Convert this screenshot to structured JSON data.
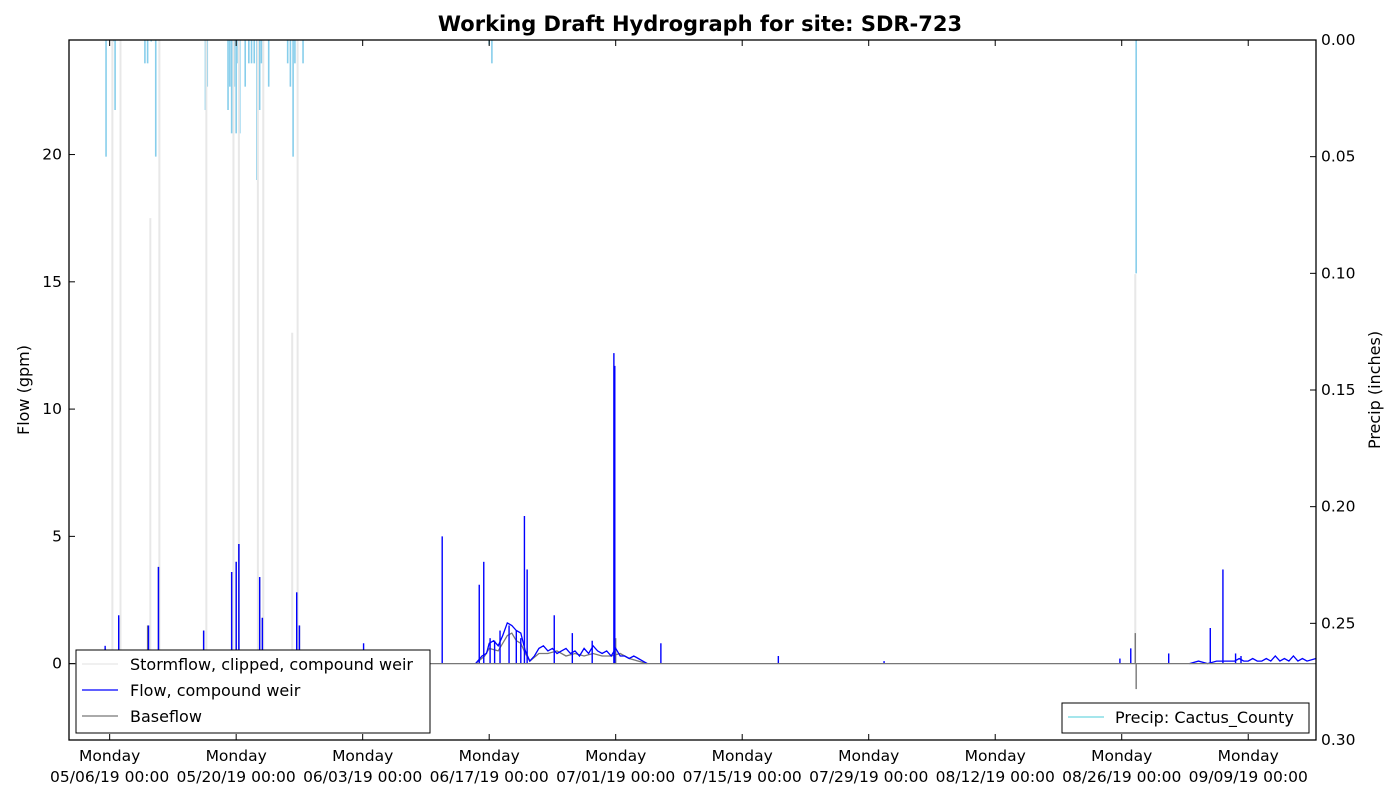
{
  "chart_data": {
    "type": "line",
    "title": "Working Draft Hydrograph for site: SDR-723",
    "xlabel": "",
    "ylabel": "Flow (gpm)",
    "ylabel_right": "Precip (inches)",
    "ylim": [
      -3,
      24.5
    ],
    "ylim_right": [
      0.3,
      0.0
    ],
    "right_axis_inverted": true,
    "grid": false,
    "x_ticks": [
      {
        "day": 0,
        "line1": "Monday",
        "line2": "05/06/19 00:00"
      },
      {
        "day": 14,
        "line1": "Monday",
        "line2": "05/20/19 00:00"
      },
      {
        "day": 28,
        "line1": "Monday",
        "line2": "06/03/19 00:00"
      },
      {
        "day": 42,
        "line1": "Monday",
        "line2": "06/17/19 00:00"
      },
      {
        "day": 56,
        "line1": "Monday",
        "line2": "07/01/19 00:00"
      },
      {
        "day": 70,
        "line1": "Monday",
        "line2": "07/15/19 00:00"
      },
      {
        "day": 84,
        "line1": "Monday",
        "line2": "07/29/19 00:00"
      },
      {
        "day": 98,
        "line1": "Monday",
        "line2": "08/12/19 00:00"
      },
      {
        "day": 112,
        "line1": "Monday",
        "line2": "08/26/19 00:00"
      },
      {
        "day": 126,
        "line1": "Monday",
        "line2": "09/09/19 00:00"
      }
    ],
    "xlim_days": [
      -4.5,
      133.5
    ],
    "y_ticks": [
      "0",
      "5",
      "10",
      "15",
      "20"
    ],
    "y_tick_values": [
      0,
      5,
      10,
      15,
      20
    ],
    "y_ticks_right": [
      "0.00",
      "0.05",
      "0.10",
      "0.15",
      "0.20",
      "0.25",
      "0.30"
    ],
    "y_tick_values_right": [
      0.0,
      0.05,
      0.1,
      0.15,
      0.2,
      0.25,
      0.3
    ],
    "legend_left": {
      "placement": "lower-left",
      "entries": [
        {
          "label": "Stormflow, clipped, compound weir",
          "color": "#e8e8e8"
        },
        {
          "label": "Flow, compound weir",
          "color": "#0000ff"
        },
        {
          "label": "Baseflow",
          "color": "#777777"
        }
      ]
    },
    "legend_right": {
      "placement": "lower-right",
      "entries": [
        {
          "label": "Precip: Cactus_County",
          "color": "#6fd6e0"
        }
      ]
    },
    "series": [
      {
        "name": "Stormflow, clipped, compound weir",
        "color": "#e8e8e8",
        "spikes": [
          [
            0.3,
            24.5
          ],
          [
            1.2,
            24.5
          ],
          [
            4.5,
            17.5
          ],
          [
            5.5,
            24.5
          ],
          [
            10.7,
            24.5
          ],
          [
            13.7,
            24.5
          ],
          [
            14.3,
            24.5
          ],
          [
            16.4,
            24.5
          ],
          [
            17.0,
            24.5
          ],
          [
            20.2,
            13
          ],
          [
            20.8,
            24.5
          ],
          [
            113.5,
            15.3
          ]
        ]
      },
      {
        "name": "Flow, compound weir",
        "color": "#0000ff",
        "spikes": [
          [
            -0.5,
            0.7
          ],
          [
            1.0,
            1.9
          ],
          [
            4.3,
            1.5
          ],
          [
            5.4,
            3.8
          ],
          [
            10.4,
            1.3
          ],
          [
            13.5,
            3.6
          ],
          [
            14.0,
            4.0
          ],
          [
            14.3,
            4.7
          ],
          [
            16.6,
            3.4
          ],
          [
            16.9,
            1.8
          ],
          [
            20.7,
            2.8
          ],
          [
            21.0,
            1.5
          ],
          [
            28.1,
            0.8
          ],
          [
            36.8,
            5.0
          ],
          [
            40.9,
            3.1
          ],
          [
            41.4,
            4.0
          ],
          [
            42.1,
            1.0
          ],
          [
            42.6,
            0.9
          ],
          [
            43.2,
            1.3
          ],
          [
            44.2,
            1.5
          ],
          [
            45.0,
            1.3
          ],
          [
            45.5,
            1.0
          ],
          [
            45.9,
            5.8
          ],
          [
            46.2,
            3.7
          ],
          [
            49.2,
            1.9
          ],
          [
            51.2,
            1.2
          ],
          [
            53.4,
            0.9
          ],
          [
            55.8,
            12.2
          ],
          [
            55.9,
            11.7
          ],
          [
            61.0,
            0.8
          ],
          [
            74.0,
            0.3
          ],
          [
            85.7,
            0.1
          ],
          [
            111.8,
            0.2
          ],
          [
            113.0,
            0.6
          ],
          [
            117.2,
            0.4
          ],
          [
            121.8,
            1.4
          ],
          [
            123.2,
            3.7
          ],
          [
            124.6,
            0.4
          ],
          [
            125.2,
            0.3
          ]
        ],
        "segments": [
          {
            "days": [
              40.5,
              41.2,
              41.7,
              42.0,
              42.5,
              43.0,
              43.5,
              44.0,
              44.5,
              45.0,
              45.5,
              46.0,
              46.5,
              47.0,
              47.5,
              48.0,
              48.5,
              49.0,
              49.5,
              50.0,
              50.5,
              51.0,
              51.5,
              52.0,
              52.5,
              53.0,
              53.5,
              54.0,
              54.5,
              55.0,
              55.5,
              56.0,
              56.5,
              57.0,
              57.5,
              58.0,
              58.5,
              59.0,
              59.5
            ],
            "values": [
              0.0,
              0.3,
              0.4,
              0.8,
              0.9,
              0.7,
              1.1,
              1.6,
              1.5,
              1.3,
              1.2,
              0.5,
              0.1,
              0.3,
              0.6,
              0.7,
              0.5,
              0.6,
              0.4,
              0.5,
              0.6,
              0.4,
              0.5,
              0.3,
              0.6,
              0.4,
              0.7,
              0.5,
              0.4,
              0.5,
              0.3,
              0.6,
              0.3,
              0.3,
              0.2,
              0.3,
              0.2,
              0.1,
              0.0
            ]
          },
          {
            "days": [
              119.5,
              120.5,
              121.5,
              122.5,
              123.5,
              124.5,
              125.0,
              125.5,
              126.0,
              126.5,
              127.0,
              127.5,
              128.0,
              128.5,
              129.0,
              129.5,
              130.0,
              130.5,
              131.0,
              131.5,
              132.0,
              132.5,
              133.5
            ],
            "values": [
              0.0,
              0.1,
              0.0,
              0.1,
              0.1,
              0.1,
              0.2,
              0.1,
              0.1,
              0.2,
              0.1,
              0.1,
              0.2,
              0.1,
              0.3,
              0.1,
              0.2,
              0.1,
              0.3,
              0.1,
              0.2,
              0.1,
              0.2
            ]
          }
        ]
      },
      {
        "name": "Baseflow",
        "color": "#777777",
        "spikes": [
          [
            -0.5,
            0.6
          ],
          [
            1.0,
            1.8
          ],
          [
            4.2,
            1.5
          ],
          [
            5.4,
            3.8
          ],
          [
            10.4,
            1.3
          ],
          [
            13.5,
            3.6
          ],
          [
            14.0,
            4.0
          ],
          [
            14.3,
            4.7
          ],
          [
            16.6,
            3.4
          ],
          [
            16.9,
            1.8
          ],
          [
            20.7,
            2.8
          ],
          [
            21.0,
            1.5
          ],
          [
            56.0,
            1.0
          ],
          [
            113.5,
            1.2
          ],
          [
            113.6,
            -1.0
          ]
        ],
        "segments": [
          {
            "days": [
              40.5,
              41.5,
              42.0,
              43.0,
              44.0,
              44.5,
              45.0,
              45.5,
              46.0,
              46.5,
              47.5,
              48.5,
              49.5,
              50.5,
              51.5,
              52.5,
              53.5,
              54.5,
              55.5,
              56.5,
              57.5,
              58.5,
              59.5
            ],
            "values": [
              0.0,
              0.3,
              0.6,
              0.5,
              1.1,
              1.2,
              0.9,
              0.8,
              0.4,
              0.1,
              0.4,
              0.4,
              0.5,
              0.3,
              0.4,
              0.3,
              0.4,
              0.3,
              0.3,
              0.4,
              0.2,
              0.1,
              0.0
            ]
          }
        ]
      },
      {
        "name": "Precip: Cactus_County",
        "axis": "right",
        "color": "#6fd6e0",
        "bars": [
          [
            -0.4,
            0.05
          ],
          [
            0.4,
            0.0
          ],
          [
            0.6,
            0.03
          ],
          [
            3.9,
            0.01
          ],
          [
            4.2,
            0.01
          ],
          [
            4.6,
            0.0
          ],
          [
            5.1,
            0.05
          ],
          [
            10.6,
            0.03
          ],
          [
            10.8,
            0.02
          ],
          [
            13.1,
            0.03
          ],
          [
            13.3,
            0.02
          ],
          [
            13.5,
            0.04
          ],
          [
            13.8,
            0.02
          ],
          [
            14.0,
            0.04
          ],
          [
            14.2,
            0.01
          ],
          [
            14.4,
            0.04
          ],
          [
            15.0,
            0.02
          ],
          [
            15.4,
            0.01
          ],
          [
            15.7,
            0.01
          ],
          [
            16.0,
            0.01
          ],
          [
            16.3,
            0.06
          ],
          [
            16.6,
            0.03
          ],
          [
            16.8,
            0.01
          ],
          [
            17.6,
            0.02
          ],
          [
            19.7,
            0.01
          ],
          [
            20.0,
            0.02
          ],
          [
            20.3,
            0.05
          ],
          [
            20.5,
            0.01
          ],
          [
            21.4,
            0.01
          ],
          [
            42.0,
            0.002
          ],
          [
            42.3,
            0.01
          ],
          [
            113.6,
            0.1
          ]
        ]
      }
    ]
  }
}
